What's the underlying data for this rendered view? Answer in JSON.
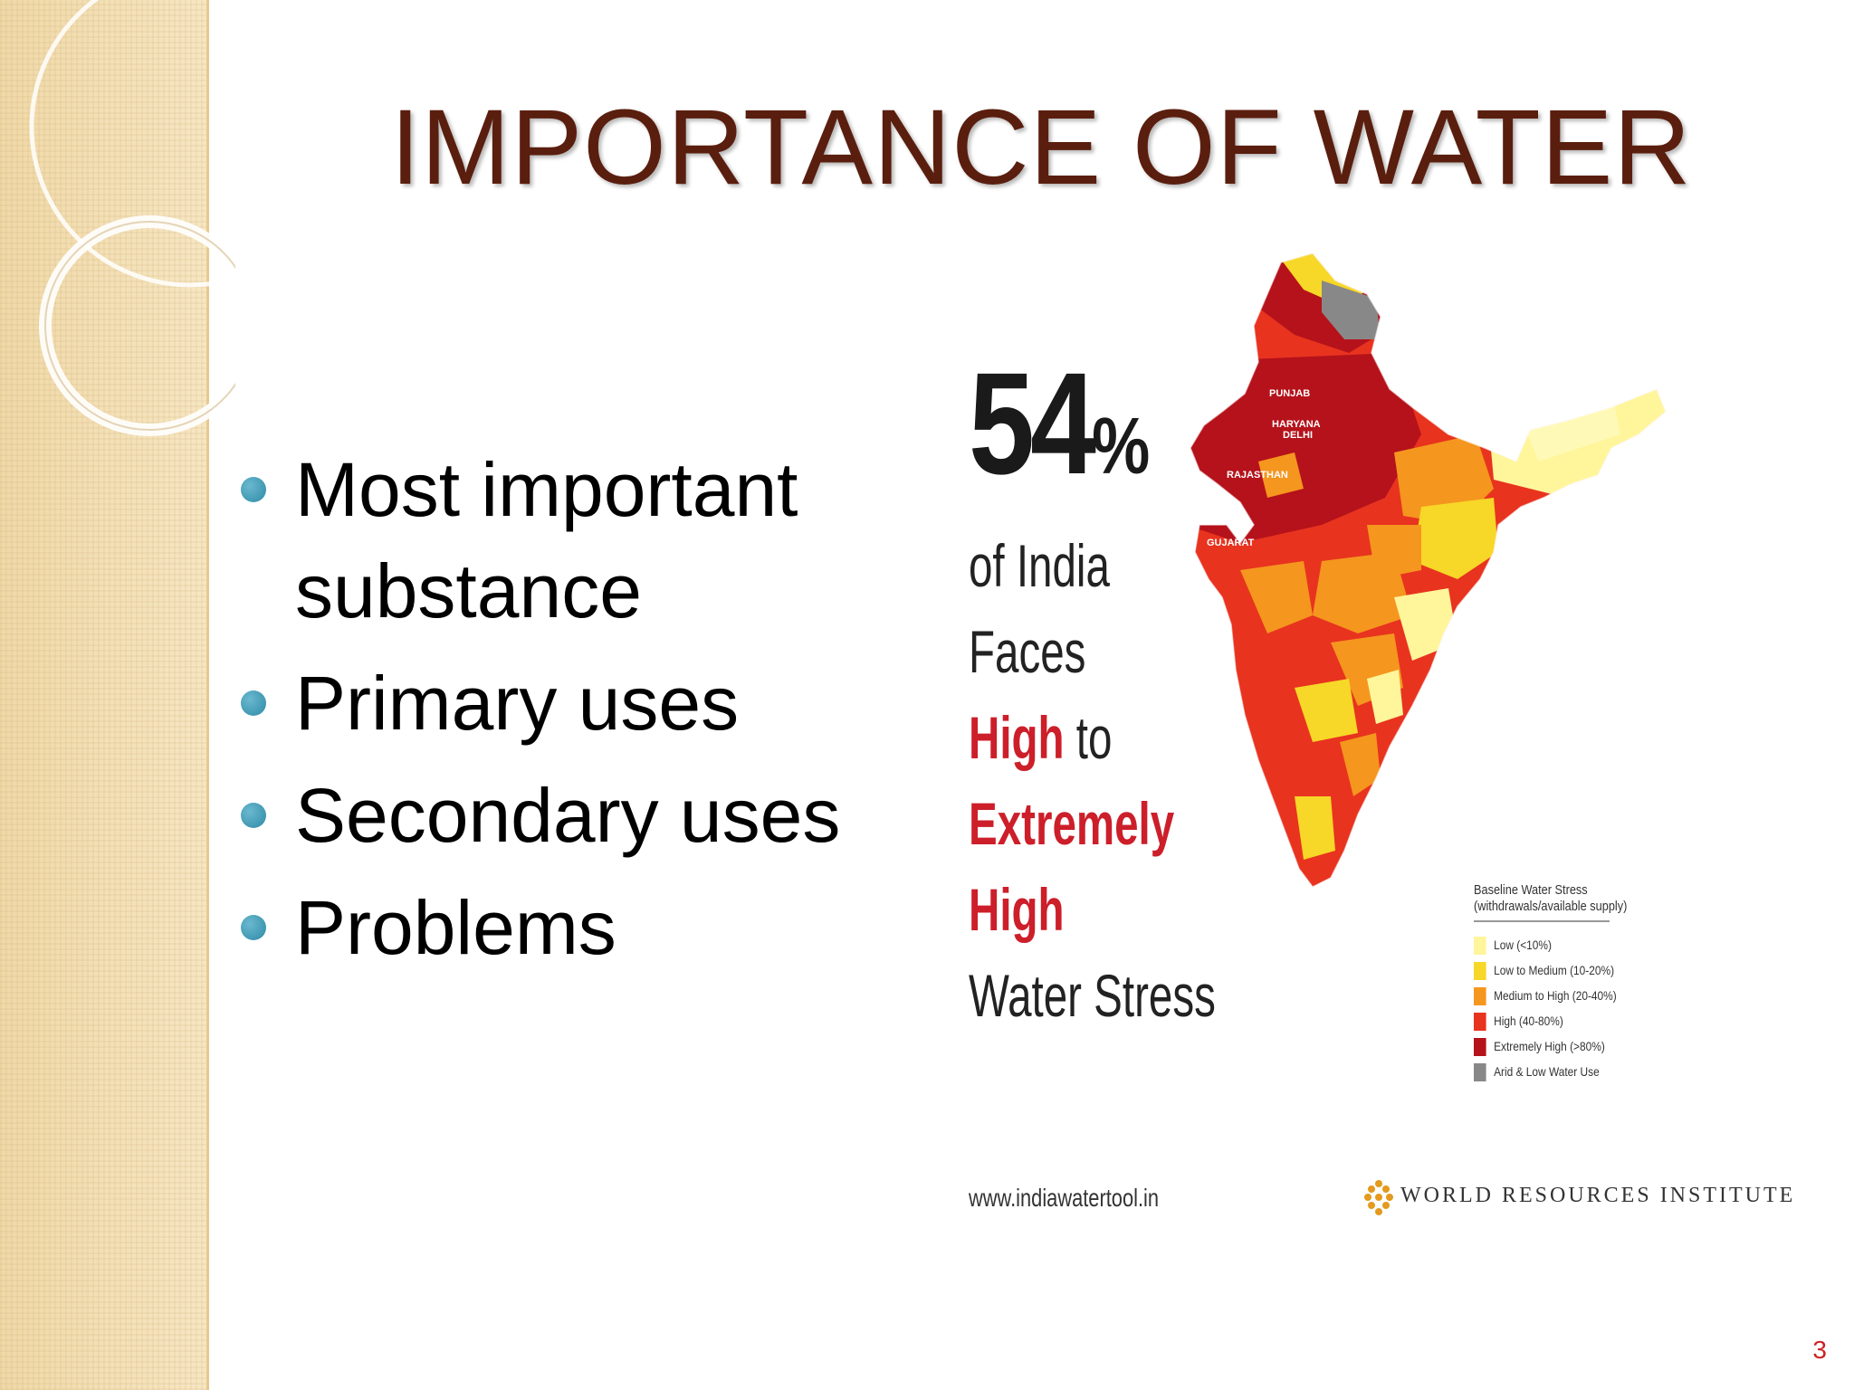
{
  "slide": {
    "title": "IMPORTANCE OF WATER",
    "page_number": "3",
    "bullets": [
      {
        "line1": "Most important",
        "line2": "substance"
      },
      {
        "line1": "Primary uses"
      },
      {
        "line1": "Secondary uses"
      },
      {
        "line1": "Problems"
      }
    ]
  },
  "infographic": {
    "percent_number": "54",
    "percent_sign": "%",
    "line_of_india": "of India",
    "line_faces": "Faces",
    "line_high": "High",
    "line_to": " to",
    "line_extremely": "Extremely",
    "line_high2": "High",
    "line_water_stress": "Water Stress",
    "website": "www.indiawatertool.in",
    "org_name": "WORLD RESOURCES INSTITUTE",
    "map_labels": [
      "PUNJAB",
      "HARYANA",
      "DELHI",
      "RAJASTHAN",
      "GUJARAT"
    ],
    "legend": {
      "title_line1": "Baseline Water Stress",
      "title_line2": "(withdrawals/available supply)",
      "items": [
        {
          "label": "Low (<10%)",
          "color": "#fff59a"
        },
        {
          "label": "Low to Medium (10-20%)",
          "color": "#f7d727"
        },
        {
          "label": "Medium to High (20-40%)",
          "color": "#f5961e"
        },
        {
          "label": "High (40-80%)",
          "color": "#e8331f"
        },
        {
          "label": "Extremely High (>80%)",
          "color": "#b5121b"
        },
        {
          "label": "Arid & Low Water Use",
          "color": "#888888"
        }
      ]
    }
  },
  "colors": {
    "title": "#5a1e0e",
    "bullet_dot": "#2e8aa6",
    "accent_red": "#cc1f2a",
    "band": "#f3dfb4"
  }
}
